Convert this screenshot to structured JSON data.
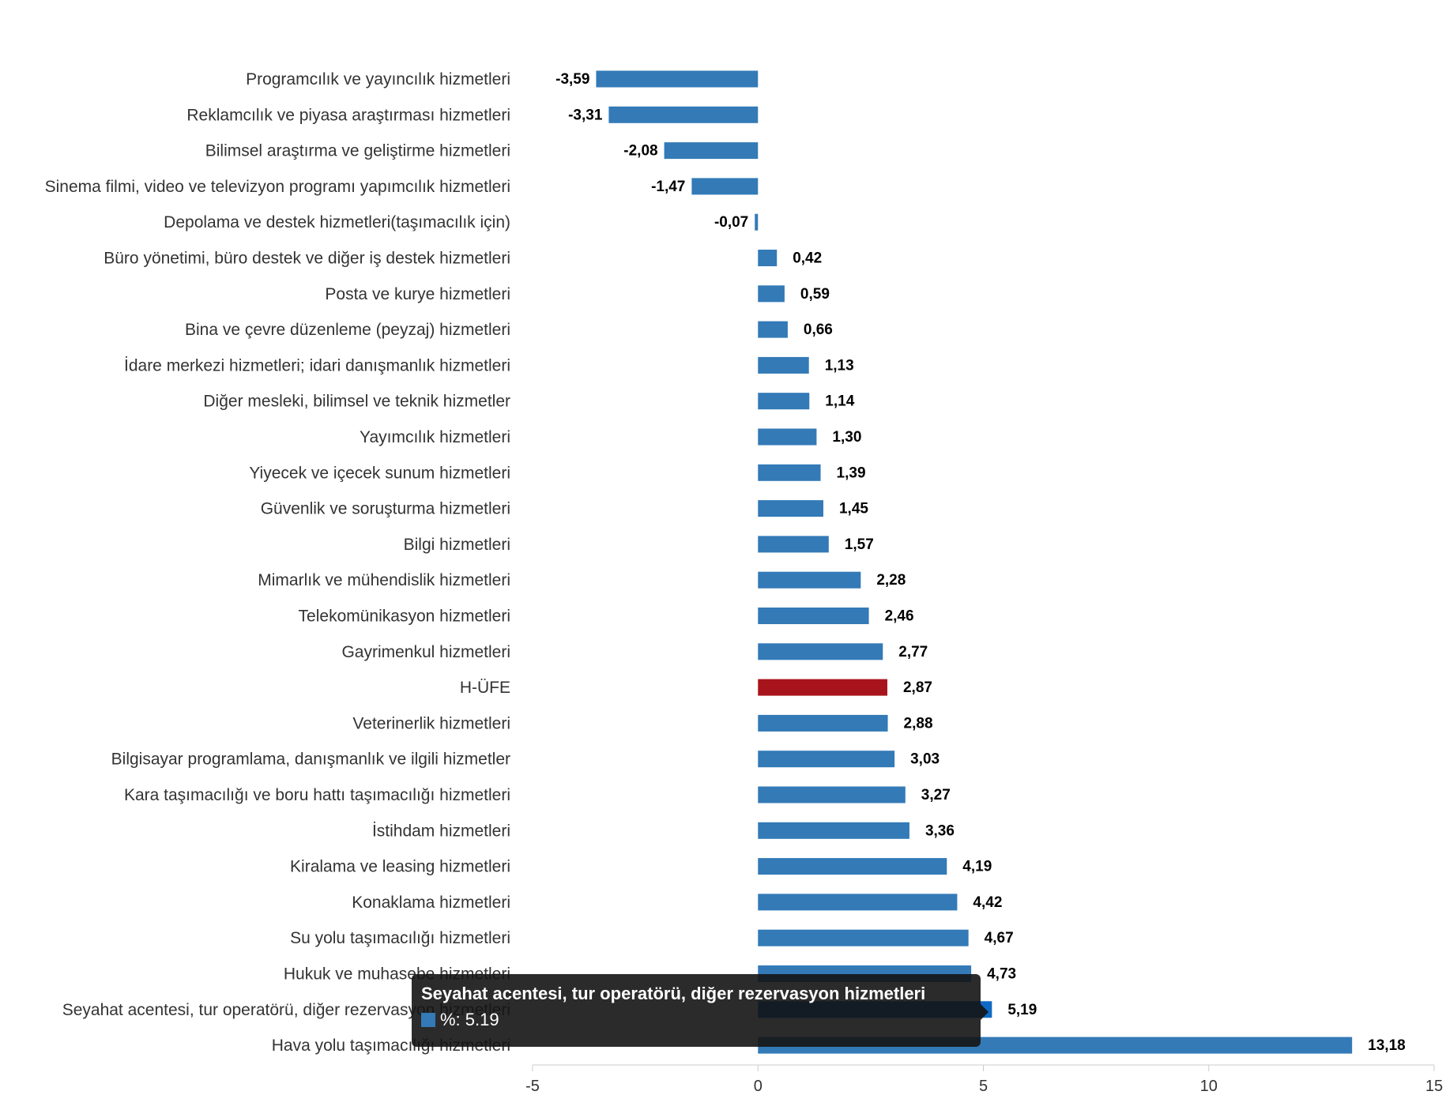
{
  "chart_data": {
    "type": "bar",
    "orientation": "horizontal",
    "categories": [
      "Programcılık ve yayıncılık hizmetleri",
      "Reklamcılık ve piyasa araştırması hizmetleri",
      "Bilimsel araştırma ve geliştirme hizmetleri",
      "Sinema filmi, video ve televizyon programı yapımcılık hizmetleri",
      "Depolama ve destek hizmetleri(taşımacılık için)",
      "Büro yönetimi, büro destek ve diğer iş destek hizmetleri",
      "Posta ve kurye hizmetleri",
      "Bina ve çevre düzenleme (peyzaj) hizmetleri",
      "İdare merkezi hizmetleri; idari danışmanlık hizmetleri",
      "Diğer mesleki, bilimsel ve teknik hizmetler",
      "Yayımcılık hizmetleri",
      "Yiyecek ve içecek sunum hizmetleri",
      "Güvenlik ve soruşturma hizmetleri",
      "Bilgi hizmetleri",
      "Mimarlık ve mühendislik hizmetleri",
      "Telekomünikasyon hizmetleri",
      "Gayrimenkul hizmetleri",
      "H-ÜFE",
      "Veterinerlik hizmetleri",
      "Bilgisayar programlama, danışmanlık ve ilgili hizmetler",
      "Kara taşımacılığı ve boru hattı taşımacılığı hizmetleri",
      "İstihdam hizmetleri",
      "Kiralama ve leasing hizmetleri",
      "Konaklama hizmetleri",
      "Su yolu taşımacılığı hizmetleri",
      "Hukuk ve muhasebe hizmetleri",
      "Seyahat acentesi, tur operatörü, diğer rezervasyon hizmetleri",
      "Hava yolu taşımacılığı hizmetleri"
    ],
    "values": [
      -3.59,
      -3.31,
      -2.08,
      -1.47,
      -0.07,
      0.42,
      0.59,
      0.66,
      1.13,
      1.14,
      1.3,
      1.39,
      1.45,
      1.57,
      2.28,
      2.46,
      2.77,
      2.87,
      2.88,
      3.03,
      3.27,
      3.36,
      4.19,
      4.42,
      4.67,
      4.73,
      5.19,
      13.18
    ],
    "value_labels": [
      "-3,59",
      "-3,31",
      "-2,08",
      "-1,47",
      "-0,07",
      "0,42",
      "0,59",
      "0,66",
      "1,13",
      "1,14",
      "1,30",
      "1,39",
      "1,45",
      "1,57",
      "2,28",
      "2,46",
      "2,77",
      "2,87",
      "2,88",
      "3,03",
      "3,27",
      "3,36",
      "4,19",
      "4,42",
      "4,67",
      "4,73",
      "5,19",
      "13,18"
    ],
    "xlim": [
      -5,
      15
    ],
    "xticks": [
      -5,
      0,
      5,
      10,
      15
    ],
    "grid": false,
    "colors": {
      "default": "#337ab7",
      "highlight": "#a8141b",
      "hover": "#0e6ac4"
    },
    "highlight_category": "H-ÜFE",
    "hover_category": "Seyahat acentesi, tur operatörü, diğer rezervasyon hizmetleri"
  },
  "tooltip": {
    "title": "Seyahat acentesi, tur operatörü, diğer rezervasyon hizmetleri",
    "text": "%: 5.19",
    "swatch_color": "#337ab7"
  }
}
